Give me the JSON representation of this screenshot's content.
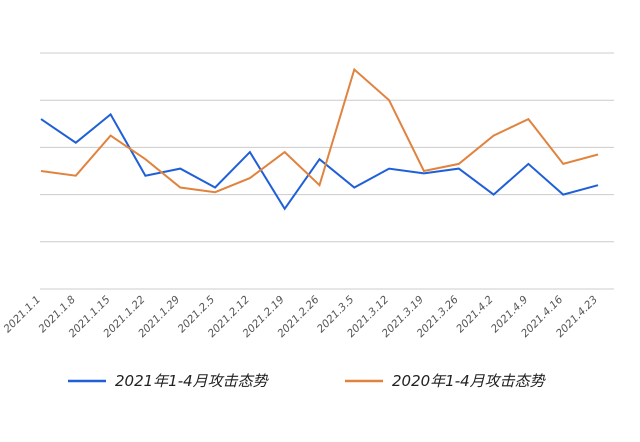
{
  "chart_data": {
    "type": "line",
    "title": "",
    "xlabel": "",
    "ylabel": "",
    "y_axis_labels_shown": false,
    "grid": true,
    "legend_position": "bottom",
    "ylim": [
      0,
      100
    ],
    "categories": [
      "2021.1.1",
      "2021.1.8",
      "2021.1.15",
      "2021.1.22",
      "2021.1.29",
      "2021.2.5",
      "2021.2.12",
      "2021.2.19",
      "2021.2.26",
      "2021.3.5",
      "2021.3.12",
      "2021.3.19",
      "2021.3.26",
      "2021.4.2",
      "2021.4.9",
      "2021.4.16",
      "2021.4.23"
    ],
    "series": [
      {
        "name": "2021年1-4月攻击态势",
        "color": "#1f5fd8",
        "values": [
          72,
          62,
          74,
          48,
          51,
          43,
          58,
          34,
          55,
          43,
          51,
          49,
          51,
          40,
          53,
          40,
          44
        ]
      },
      {
        "name": "2020年1-4月攻击态势",
        "color": "#e0833f",
        "values": [
          50,
          48,
          65,
          55,
          43,
          41,
          47,
          58,
          44,
          93,
          80,
          50,
          53,
          65,
          72,
          53,
          57
        ]
      }
    ]
  }
}
